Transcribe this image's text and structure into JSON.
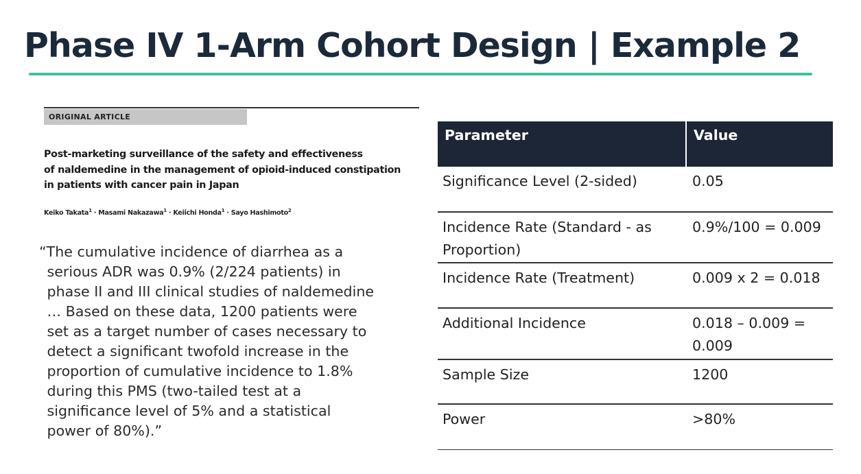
{
  "slide": {
    "title": "Phase IV 1-Arm Cohort Design | Example 2"
  },
  "article": {
    "tag": "ORIGINAL ARTICLE",
    "title_lines": [
      "Post-marketing surveillance of the safety and effectiveness",
      "of naldemedine in the management of opioid-induced constipation",
      "in patients with cancer pain in Japan"
    ],
    "authors": [
      {
        "name": "Keiko Takata",
        "affil": "1"
      },
      {
        "name": "Masami Nakazawa",
        "affil": "1"
      },
      {
        "name": "Keiichi Honda",
        "affil": "1"
      },
      {
        "name": "Sayo Hashimoto",
        "affil": "2"
      }
    ],
    "separator": " · "
  },
  "quote": {
    "lines": [
      "“The cumulative incidence of diarrhea as a",
      "serious ADR was 0.9% (2/224 patients) in",
      "phase II and III clinical studies of naldemedine",
      "… Based on these data, 1200 patients were",
      "set as a target number of cases necessary to",
      "detect a significant twofold increase in the",
      "proportion of cumulative incidence to 1.8%",
      "during this PMS (two-tailed test at a",
      "significance level of 5% and a statistical",
      "power of 80%).”"
    ]
  },
  "table": {
    "headers": [
      "Parameter",
      "Value"
    ],
    "rows": [
      {
        "param": "Significance Level (2-sided)",
        "value": "0.05"
      },
      {
        "param": "Incidence Rate (Standard - as Proportion)",
        "value": "0.9%/100 = 0.009"
      },
      {
        "param": "Incidence Rate (Treatment)",
        "value": "0.009 x 2 = 0.018"
      },
      {
        "param": "Additional Incidence",
        "value": "0.018 – 0.009 = 0.009"
      },
      {
        "param": "Sample Size",
        "value": "1200"
      },
      {
        "param": "Power",
        "value": ">80%"
      }
    ]
  },
  "colors": {
    "title_text": "#1b2a3b",
    "accent_line": "#3fc0a0",
    "table_header_bg": "#1c2636",
    "table_header_text": "#ffffff",
    "article_tag_bg": "#c6c6c6"
  }
}
